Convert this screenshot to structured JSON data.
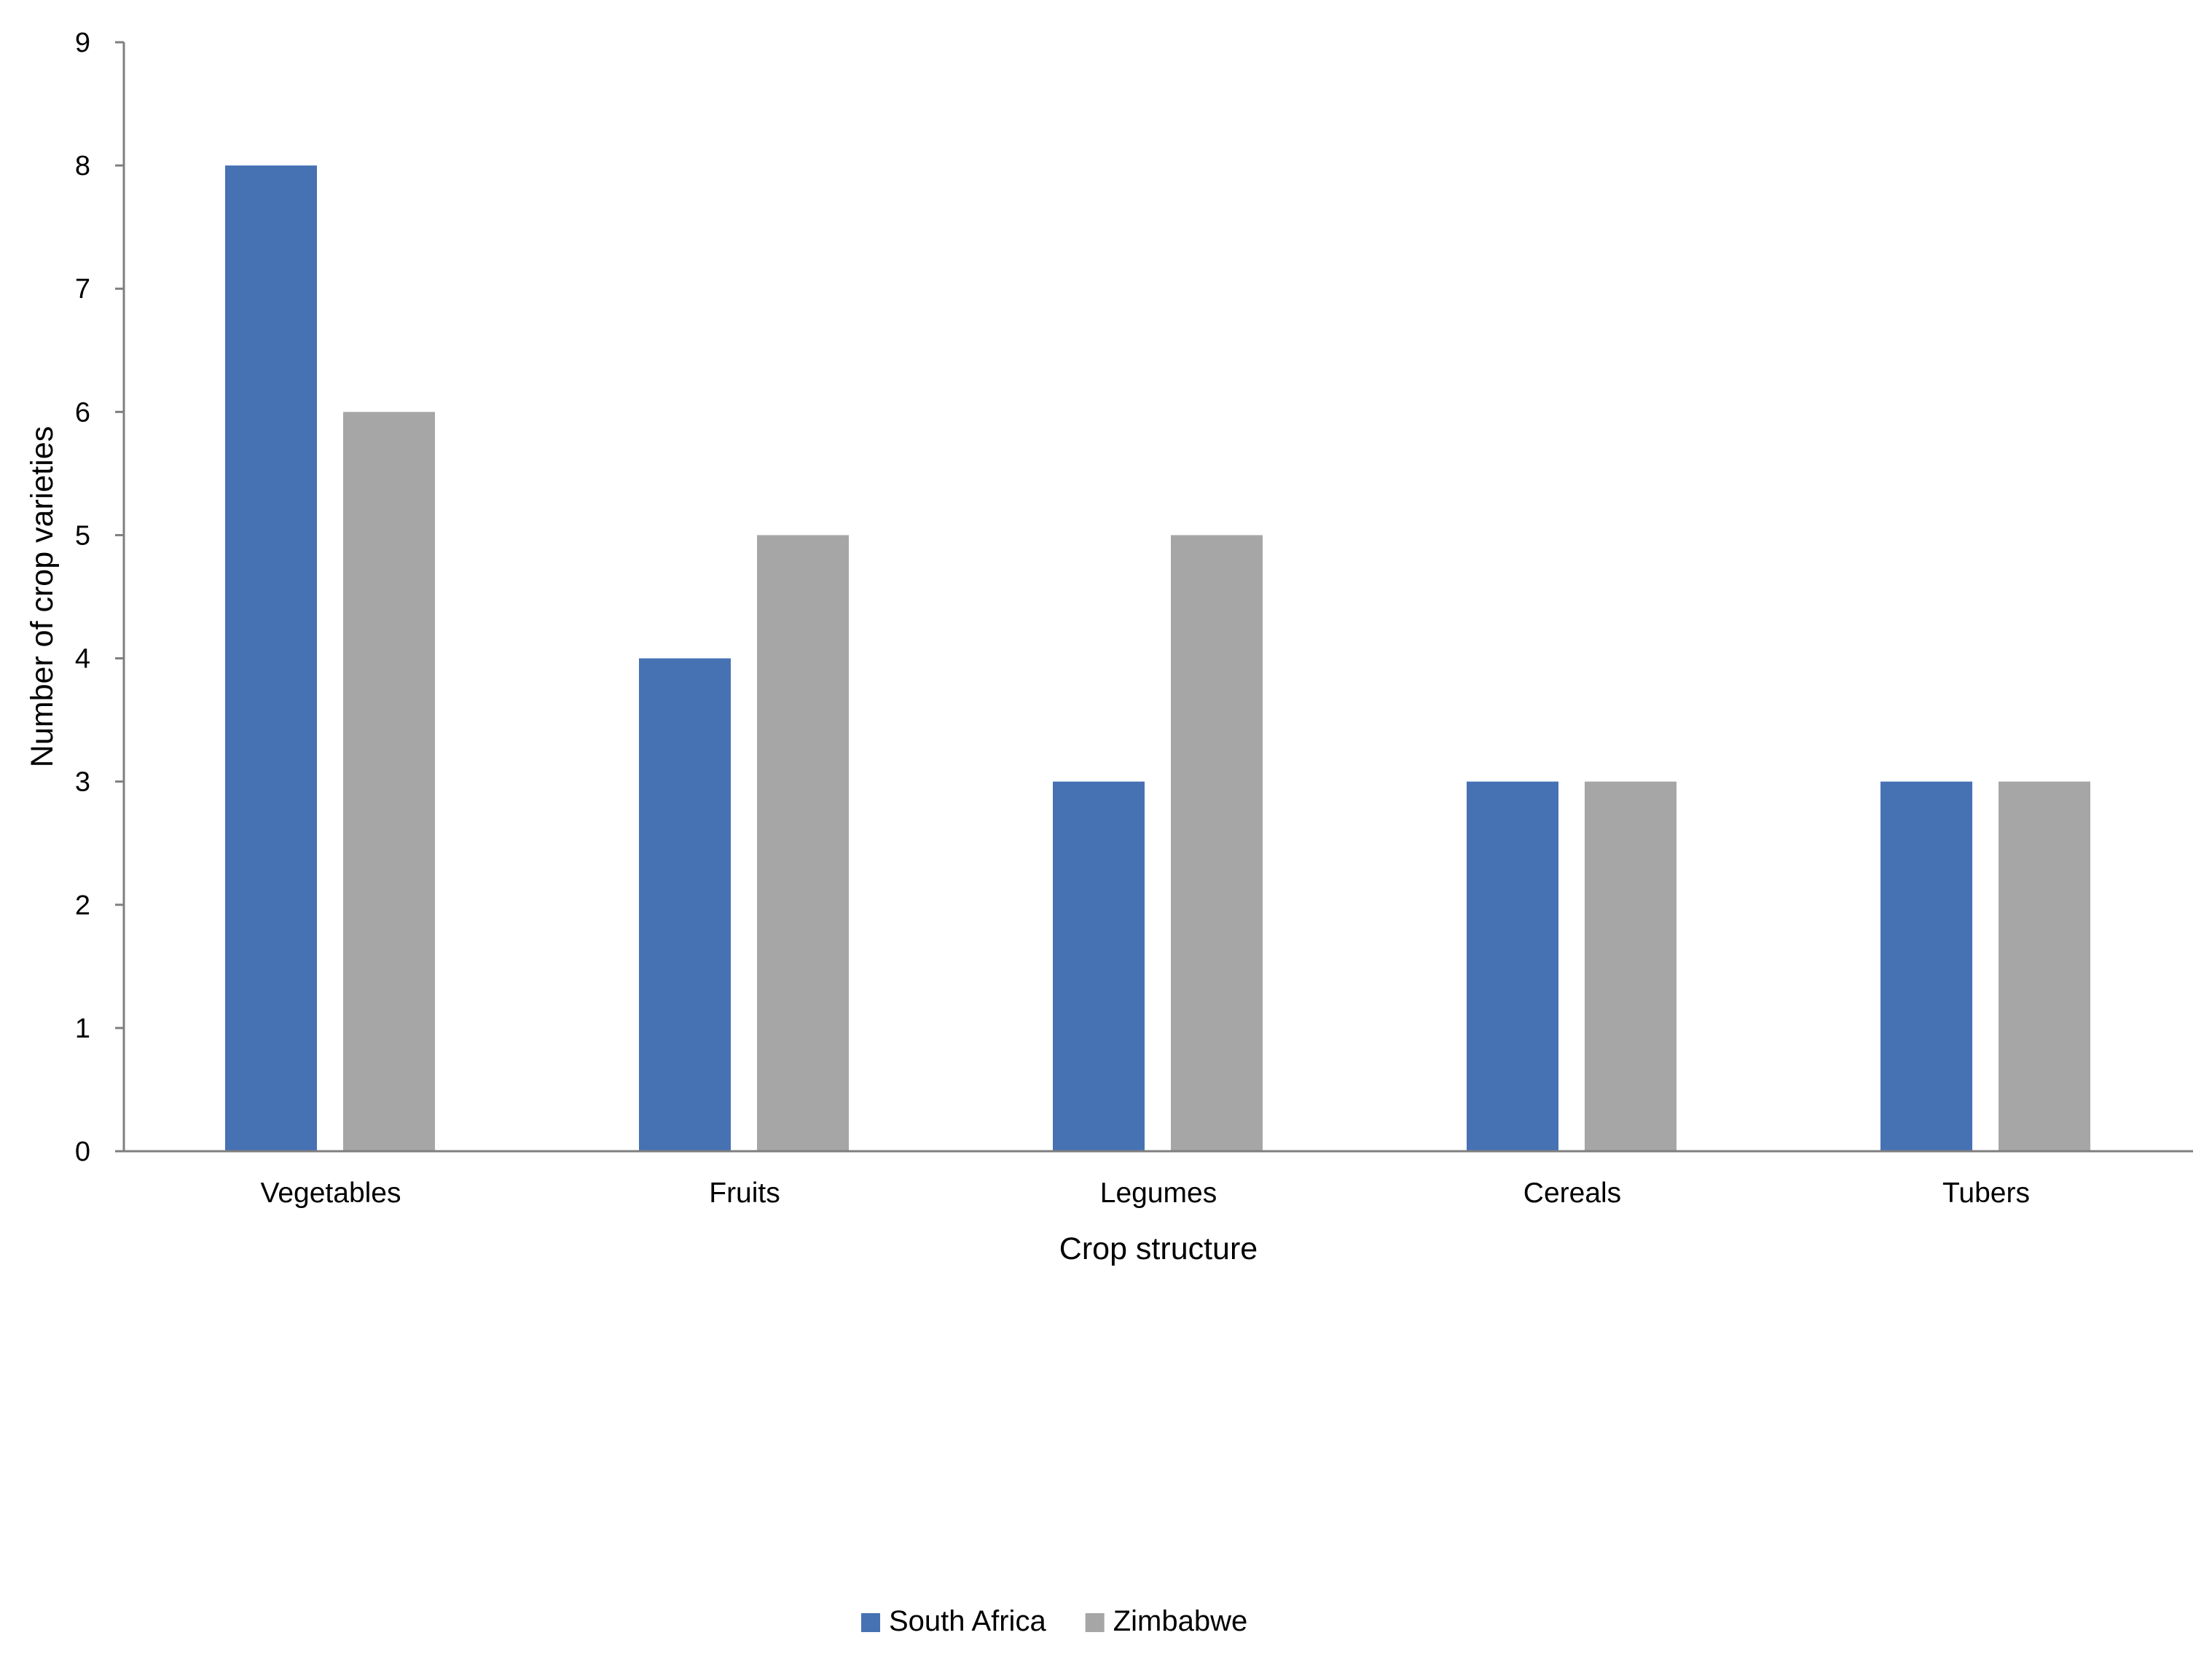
{
  "chart_data": {
    "type": "bar",
    "title": "",
    "xlabel": "Crop structure",
    "ylabel": "Number of crop varieties",
    "categories": [
      "Vegetables",
      "Fruits",
      "Legumes",
      "Cereals",
      "Tubers"
    ],
    "series": [
      {
        "name": "South Africa",
        "values": [
          8,
          4,
          3,
          3,
          3
        ],
        "color": "#4672B4"
      },
      {
        "name": "Zimbabwe",
        "values": [
          6,
          5,
          5,
          3,
          3
        ],
        "color": "#A6A6A6"
      }
    ],
    "ylim": [
      0,
      9
    ],
    "yticks": [
      0,
      1,
      2,
      3,
      4,
      5,
      6,
      7,
      8,
      9
    ],
    "grid": false,
    "legend_position": "bottom-center"
  }
}
